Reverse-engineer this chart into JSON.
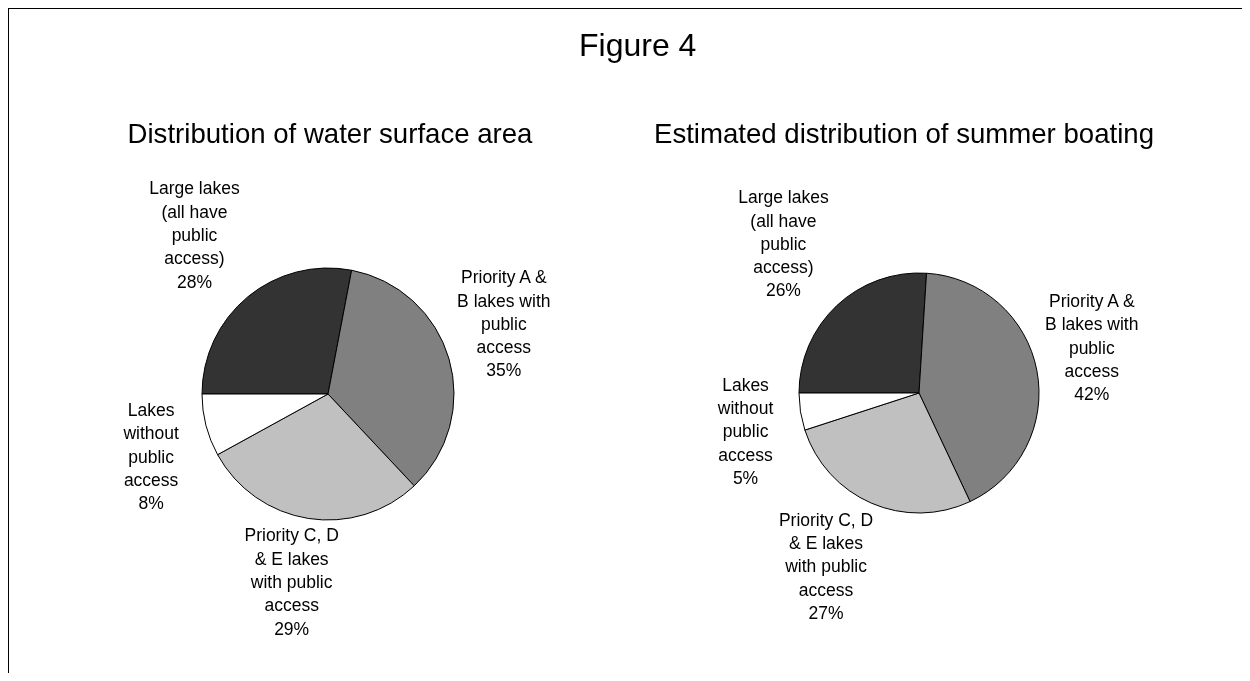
{
  "chart_data": [
    {
      "type": "other",
      "title": "Figure 4"
    },
    {
      "type": "pie",
      "title": "Distribution of water surface area",
      "categories": [
        "Large lakes\n(all have\npublic\naccess)",
        "Priority A &\nB lakes with\npublic\naccess",
        "Priority C, D\n& E lakes\nwith public\naccess",
        "Lakes\nwithout\npublic\naccess"
      ],
      "values": [
        28,
        35,
        29,
        8
      ],
      "value_labels": [
        "28%",
        "35%",
        "29%",
        "8%"
      ],
      "colors": [
        "#333333",
        "#808080",
        "#c0c0c0",
        "#ffffff"
      ]
    },
    {
      "type": "pie",
      "title": "Estimated distribution of summer boating",
      "categories": [
        "Large lakes\n(all have\npublic\naccess)",
        "Priority A &\nB lakes with\npublic\naccess",
        "Priority C, D\n& E lakes\nwith public\naccess",
        "Lakes\nwithout\npublic\naccess"
      ],
      "values": [
        26,
        42,
        27,
        5
      ],
      "value_labels": [
        "26%",
        "42%",
        "27%",
        "5%"
      ],
      "colors": [
        "#333333",
        "#808080",
        "#c0c0c0",
        "#ffffff"
      ]
    }
  ]
}
